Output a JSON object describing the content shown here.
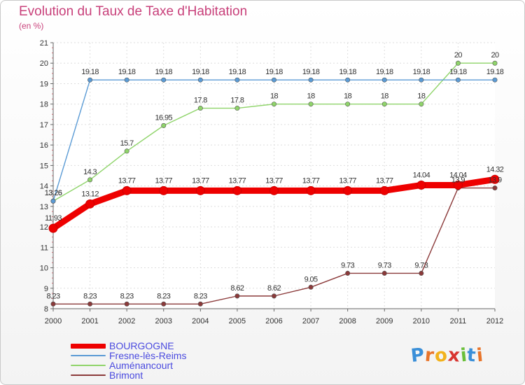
{
  "title": "Evolution du Taux de Taxe d'Habitation",
  "subtitle": "(en %)",
  "logo": {
    "letters": [
      "P",
      "r",
      "o",
      "x",
      "i",
      "t",
      "i"
    ],
    "colors": [
      "#3a8fd8",
      "#e8742a",
      "#f2b21c",
      "#d8342f",
      "#6abf3a",
      "#3a8fd8",
      "#e8742a"
    ]
  },
  "chart_data": {
    "type": "line",
    "x": [
      "2000",
      "2001",
      "2002",
      "2003",
      "2004",
      "2005",
      "2006",
      "2007",
      "2008",
      "2009",
      "2010",
      "2011",
      "2012"
    ],
    "ylim": [
      8,
      21
    ],
    "yticks": [
      "8",
      "9",
      "10",
      "11",
      "12",
      "13",
      "14",
      "15",
      "16",
      "17",
      "18",
      "19",
      "20",
      "21"
    ],
    "grid": true,
    "legend_position": "bottom-left",
    "series": [
      {
        "name": "BOURGOGNE",
        "color": "#ee0000",
        "values": [
          11.93,
          13.12,
          13.77,
          13.77,
          13.77,
          13.77,
          13.77,
          13.77,
          13.77,
          13.77,
          14.04,
          14.04,
          14.32
        ],
        "labels": [
          "11.93",
          "13.12",
          "13.77",
          "13.77",
          "13.77",
          "13.77",
          "13.77",
          "13.77",
          "13.77",
          "13.77",
          "14.04",
          "14.04",
          "14.32"
        ]
      },
      {
        "name": "Fresne-lès-Reims",
        "color": "#5b9bd5",
        "values": [
          13.26,
          19.18,
          19.18,
          19.18,
          19.18,
          19.18,
          19.18,
          19.18,
          19.18,
          19.18,
          19.18,
          19.18,
          19.18
        ],
        "labels": [
          "13.26",
          "19.18",
          "19.18",
          "19.18",
          "19.18",
          "19.18",
          "19.18",
          "19.18",
          "19.18",
          "19.18",
          "19.18",
          "19.18",
          "19.18"
        ]
      },
      {
        "name": "Auménancourt",
        "color": "#8fd46a",
        "values": [
          13.26,
          14.3,
          15.7,
          16.95,
          17.8,
          17.8,
          18,
          18,
          18,
          18,
          18,
          20,
          20
        ],
        "labels": [
          "13.26",
          "14.3",
          "15.7",
          "16.95",
          "17.8",
          "17.8",
          "18",
          "18",
          "18",
          "18",
          "18",
          "20",
          "20"
        ]
      },
      {
        "name": "Brimont",
        "color": "#8b3a3a",
        "values": [
          8.23,
          8.23,
          8.23,
          8.23,
          8.23,
          8.62,
          8.62,
          9.05,
          9.73,
          9.73,
          9.73,
          13.9,
          13.9
        ],
        "labels": [
          "8.23",
          "8.23",
          "8.23",
          "8.23",
          "8.23",
          "8.62",
          "8.62",
          "9.05",
          "9.73",
          "9.73",
          "9.73",
          "13.9",
          "13.9"
        ]
      }
    ]
  }
}
